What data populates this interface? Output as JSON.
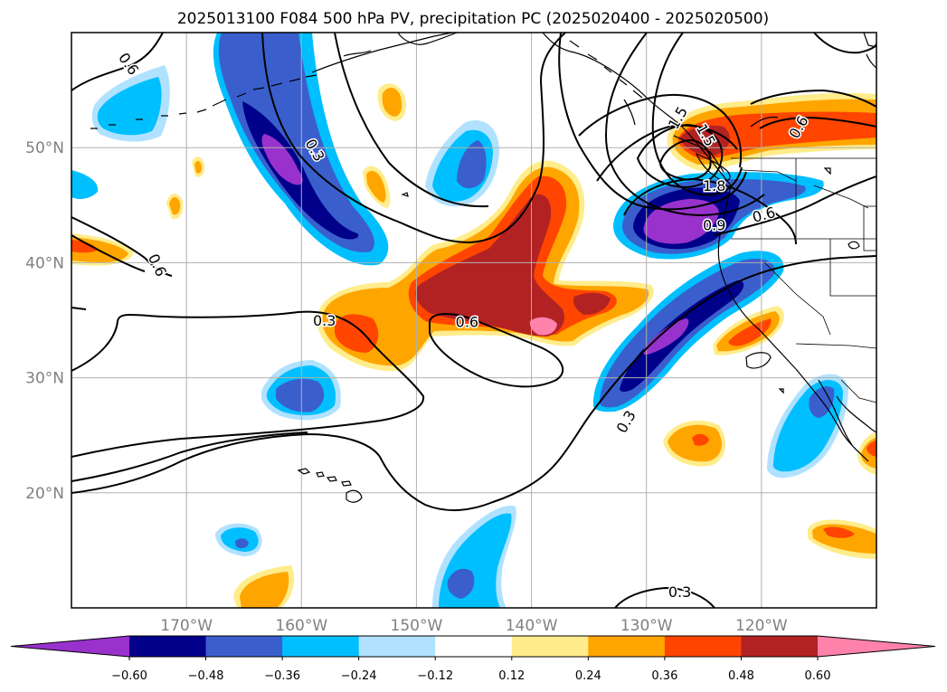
{
  "title": "2025013100 F084 500 hPa PV, precipitation PC (2025020400 - 2025020500)",
  "map": {
    "lon_range": [
      -180,
      -110
    ],
    "lat_range": [
      10,
      60
    ],
    "lon_ticks": [
      {
        "value": -170,
        "label": "170°W"
      },
      {
        "value": -160,
        "label": "160°W"
      },
      {
        "value": -150,
        "label": "150°W"
      },
      {
        "value": -140,
        "label": "140°W"
      },
      {
        "value": -130,
        "label": "130°W"
      },
      {
        "value": -120,
        "label": "120°W"
      }
    ],
    "lat_ticks": [
      {
        "value": 20,
        "label": "20°N"
      },
      {
        "value": 30,
        "label": "30°N"
      },
      {
        "value": 40,
        "label": "40°N"
      },
      {
        "value": 50,
        "label": "50°N"
      }
    ],
    "grid": true
  },
  "contour_labels": [
    {
      "text": "0.6",
      "lon": -175,
      "lat": 57.3,
      "rot": 55
    },
    {
      "text": "0.3",
      "lon": -158.8,
      "lat": 49.8,
      "rot": 60
    },
    {
      "text": "0.6",
      "lon": -172.5,
      "lat": 39.8,
      "rot": 65
    },
    {
      "text": "0.3",
      "lon": -158,
      "lat": 35,
      "rot": 0
    },
    {
      "text": "0.6",
      "lon": -145.6,
      "lat": 34.9,
      "rot": 0
    },
    {
      "text": "0.3",
      "lon": -131.8,
      "lat": 26.2,
      "rot": -60
    },
    {
      "text": "0.3",
      "lon": -127.1,
      "lat": 11.4,
      "rot": 0
    },
    {
      "text": "1.5",
      "lon": -127.3,
      "lat": 52.6,
      "rot": -60
    },
    {
      "text": "1.5",
      "lon": -124.8,
      "lat": 51.1,
      "rot": 60
    },
    {
      "text": "1.8",
      "lon": -124.1,
      "lat": 46.7,
      "rot": 0
    },
    {
      "text": "0.9",
      "lon": -124.1,
      "lat": 43.3,
      "rot": 0
    },
    {
      "text": "0.6",
      "lon": -119.8,
      "lat": 44.2,
      "rot": -15
    },
    {
      "text": "0.6",
      "lon": -116.8,
      "lat": 51.8,
      "rot": -60
    }
  ],
  "colorbar": {
    "levels": [
      -0.72,
      -0.6,
      -0.48,
      -0.36,
      -0.24,
      -0.12,
      0.12,
      0.24,
      0.36,
      0.48,
      0.6,
      0.72
    ],
    "tick_labels": [
      "−0.60",
      "−0.48",
      "−0.36",
      "−0.24",
      "−0.12",
      "0.12",
      "0.24",
      "0.36",
      "0.48",
      "0.60"
    ],
    "colors": {
      "neg_extend": "#9932cc",
      "neg5": "#00008b",
      "neg4": "#3a5fcd",
      "neg3": "#00bfff",
      "neg2": "#b0e2ff",
      "zero": "#ffffff",
      "pos1": "#ffec8b",
      "pos2": "#ffa500",
      "pos3": "#ff4500",
      "pos4": "#b22222",
      "pos_extend": "#ff82ab"
    }
  }
}
